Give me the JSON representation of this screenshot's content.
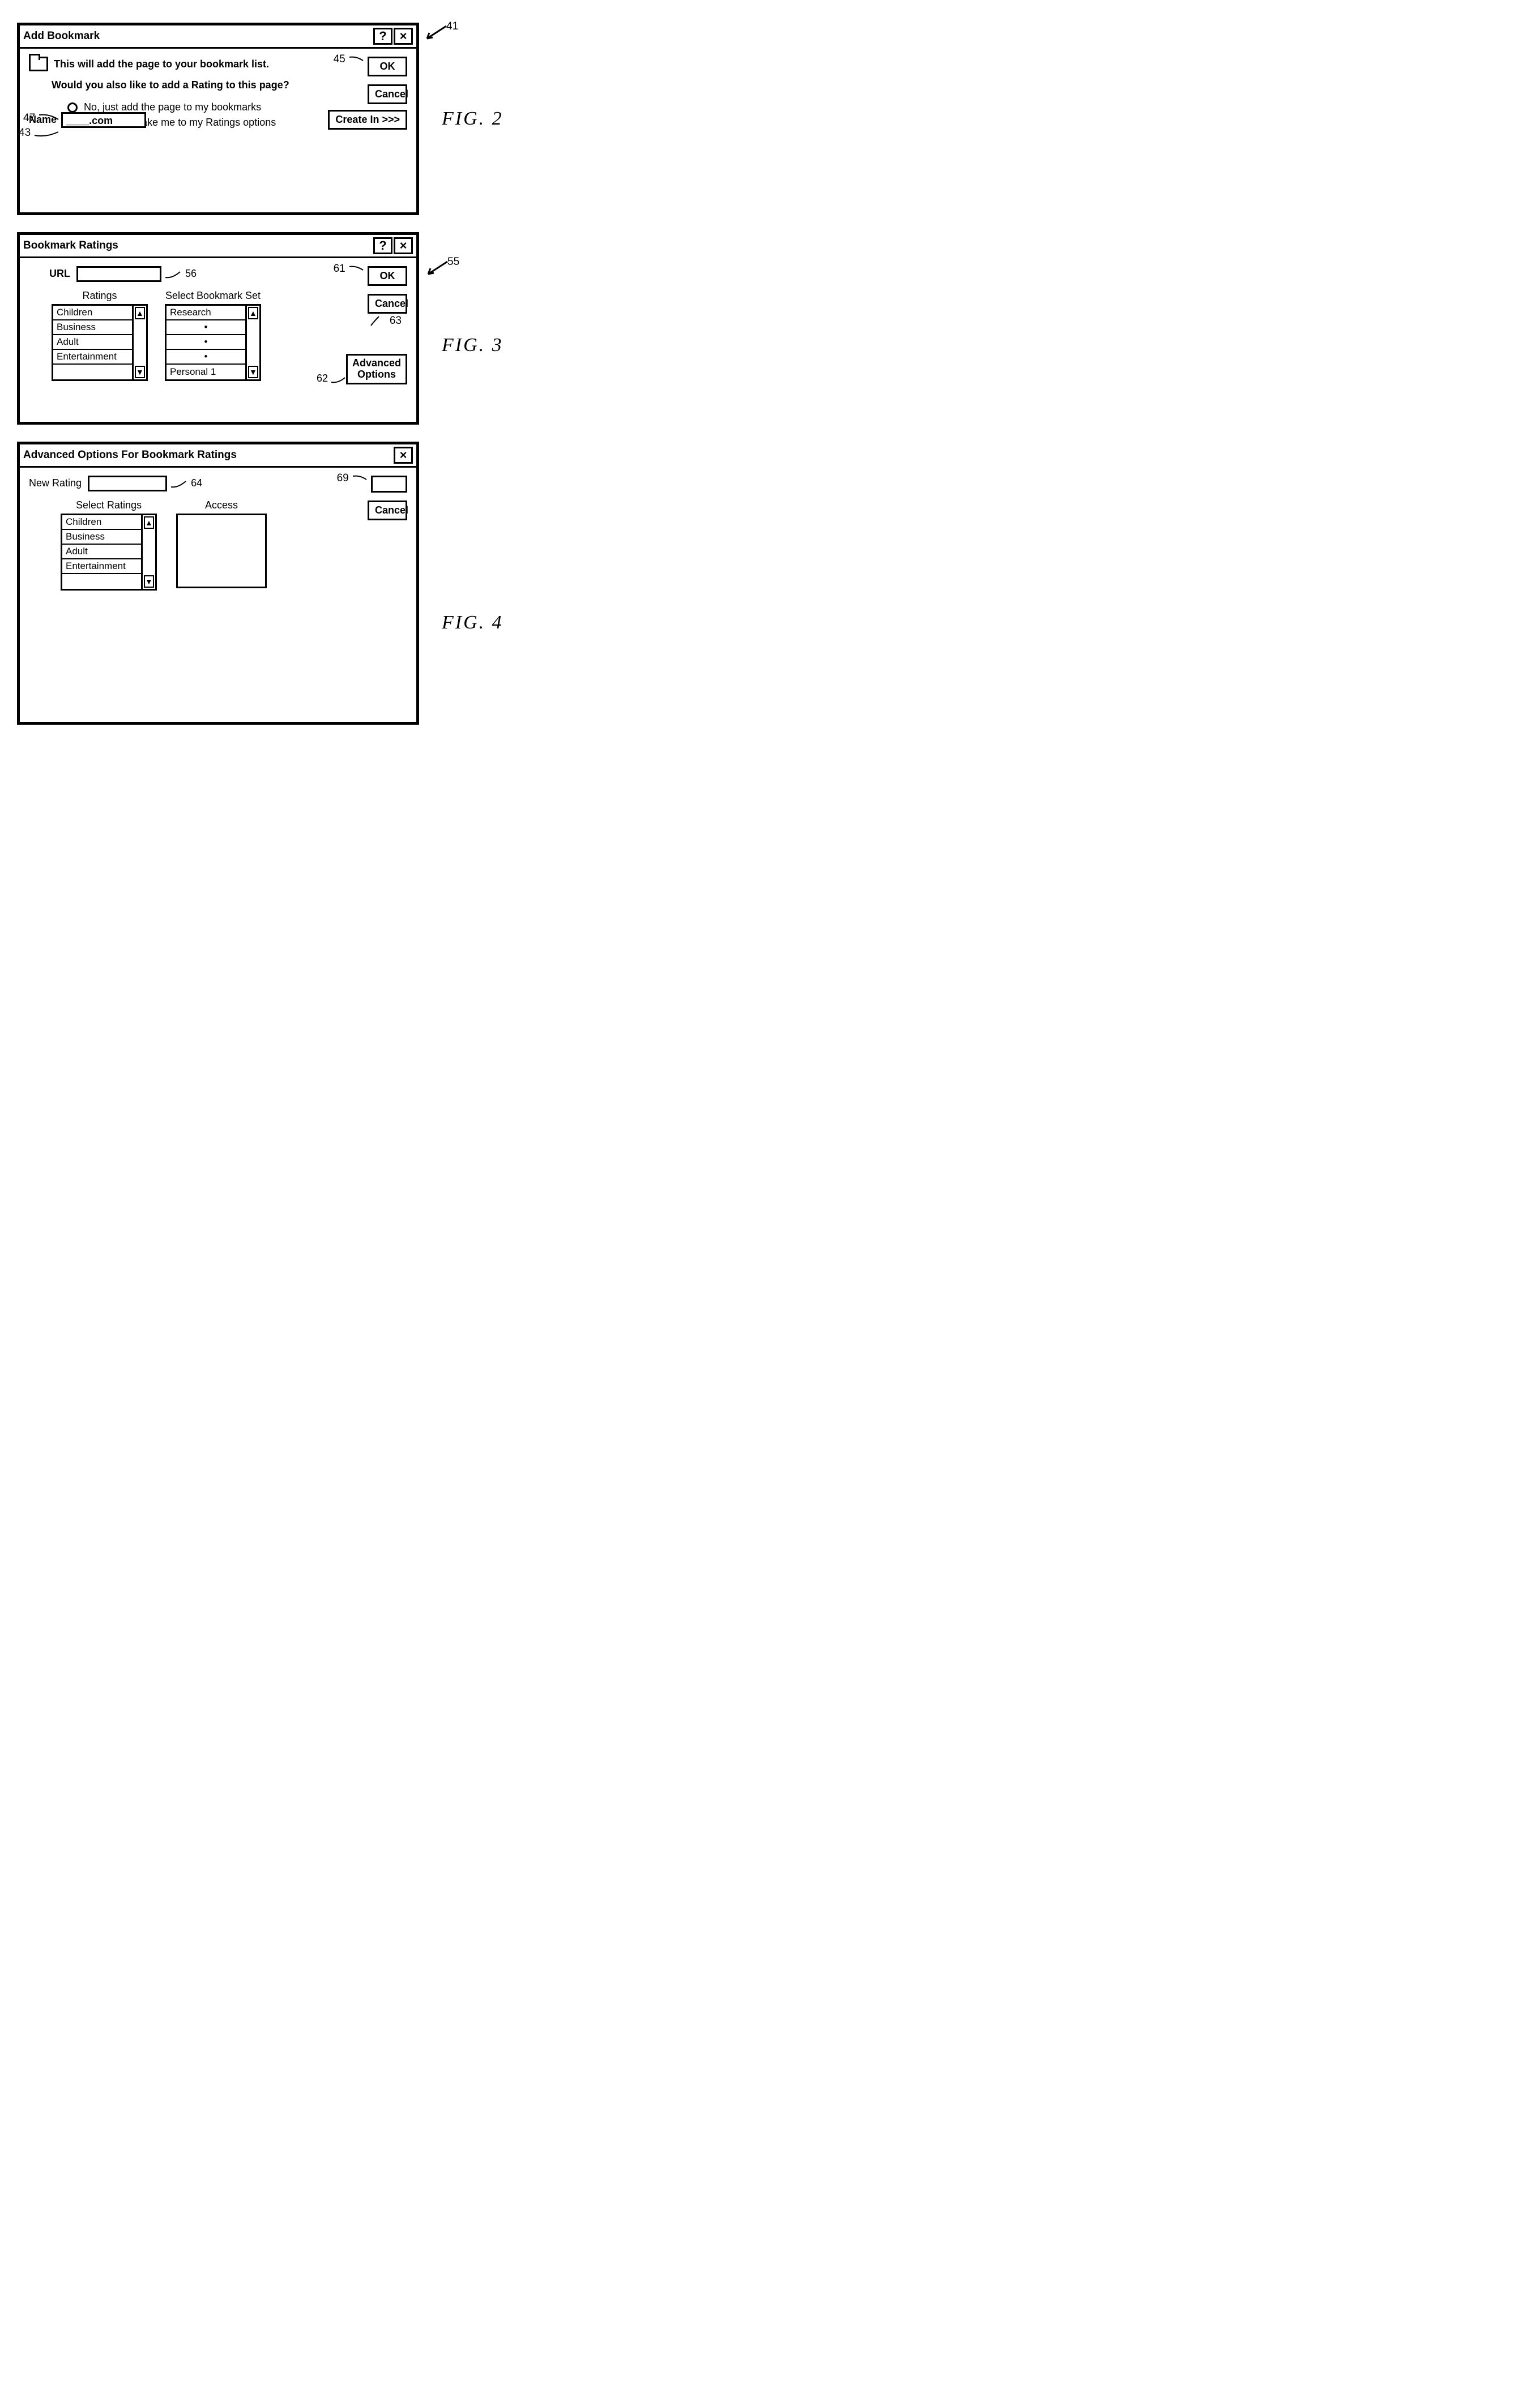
{
  "fig2": {
    "label": "FIG. 2",
    "callout_dialog": "41",
    "title": "Add Bookmark",
    "help": "?",
    "close": "×",
    "line1": "This will add the page to your bookmark list.",
    "line2": "Would you also like to add a Rating to this page?",
    "radio_no": "No, just add the page to my bookmarks",
    "radio_yes": "Yes, please take me to my Ratings options",
    "callout_no": "47",
    "callout_yes": "43",
    "name_label": "Name",
    "name_value": "____.com",
    "ok": "OK",
    "callout_ok": "45",
    "cancel": "Cancel",
    "create_in": "Create In >>>"
  },
  "fig3": {
    "label": "FIG. 3",
    "callout_dialog": "55",
    "title": "Bookmark Ratings",
    "help": "?",
    "close": "×",
    "url_label": "URL",
    "callout_url": "56",
    "ok": "OK",
    "callout_ok": "61",
    "cancel": "Cancel",
    "callout_cancel": "63",
    "ratings_heading": "Ratings",
    "ratings_items": [
      "Children",
      "Business",
      "Adult",
      "Entertainment",
      ""
    ],
    "bookmark_heading": "Select Bookmark Set",
    "bookmark_items": [
      "Research",
      "•",
      "•",
      "•",
      "Personal 1"
    ],
    "advanced": "Advanced\nOptions",
    "callout_advanced": "62"
  },
  "fig4": {
    "label": "FIG. 4",
    "title": "Advanced Options For Bookmark Ratings",
    "close": "×",
    "new_rating_label": "New Rating",
    "callout_new_rating": "64",
    "callout_ok": "69",
    "cancel": "Cancel",
    "select_ratings_heading": "Select Ratings",
    "ratings_items": [
      "Children",
      "Business",
      "Adult",
      "Entertainment",
      ""
    ],
    "access_heading": "Access"
  }
}
